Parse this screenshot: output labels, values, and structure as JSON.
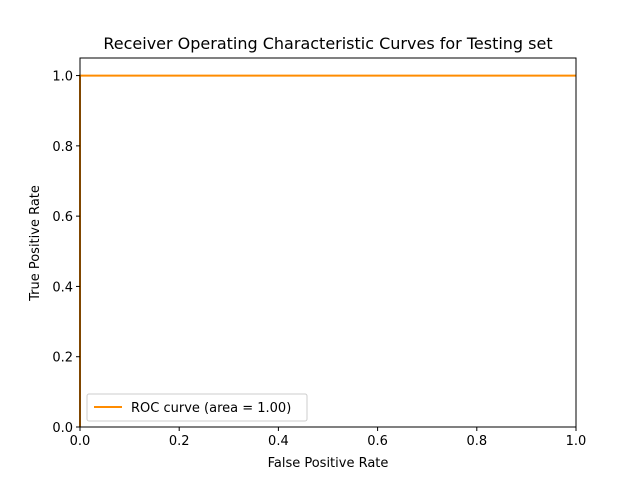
{
  "chart_data": {
    "type": "line",
    "title": "Receiver Operating Characteristic Curves for Testing set",
    "xlabel": "False Positive Rate",
    "ylabel": "True Positive Rate",
    "xlim": [
      0.0,
      1.0
    ],
    "ylim": [
      0.0,
      1.05
    ],
    "x_ticks": [
      0.0,
      0.2,
      0.4,
      0.6,
      0.8,
      1.0
    ],
    "x_tick_labels": [
      "0.0",
      "0.2",
      "0.4",
      "0.6",
      "0.8",
      "1.0"
    ],
    "y_ticks": [
      0.0,
      0.2,
      0.4,
      0.6,
      0.8,
      1.0
    ],
    "y_tick_labels": [
      "0.0",
      "0.2",
      "0.4",
      "0.6",
      "0.8",
      "1.0"
    ],
    "grid": false,
    "legend_position": "lower-left",
    "series": [
      {
        "name": "ROC curve (area = 1.00)",
        "color": "#ff8c00",
        "x": [
          0.0,
          0.0,
          1.0
        ],
        "y": [
          0.0,
          1.0,
          1.0
        ]
      }
    ]
  }
}
